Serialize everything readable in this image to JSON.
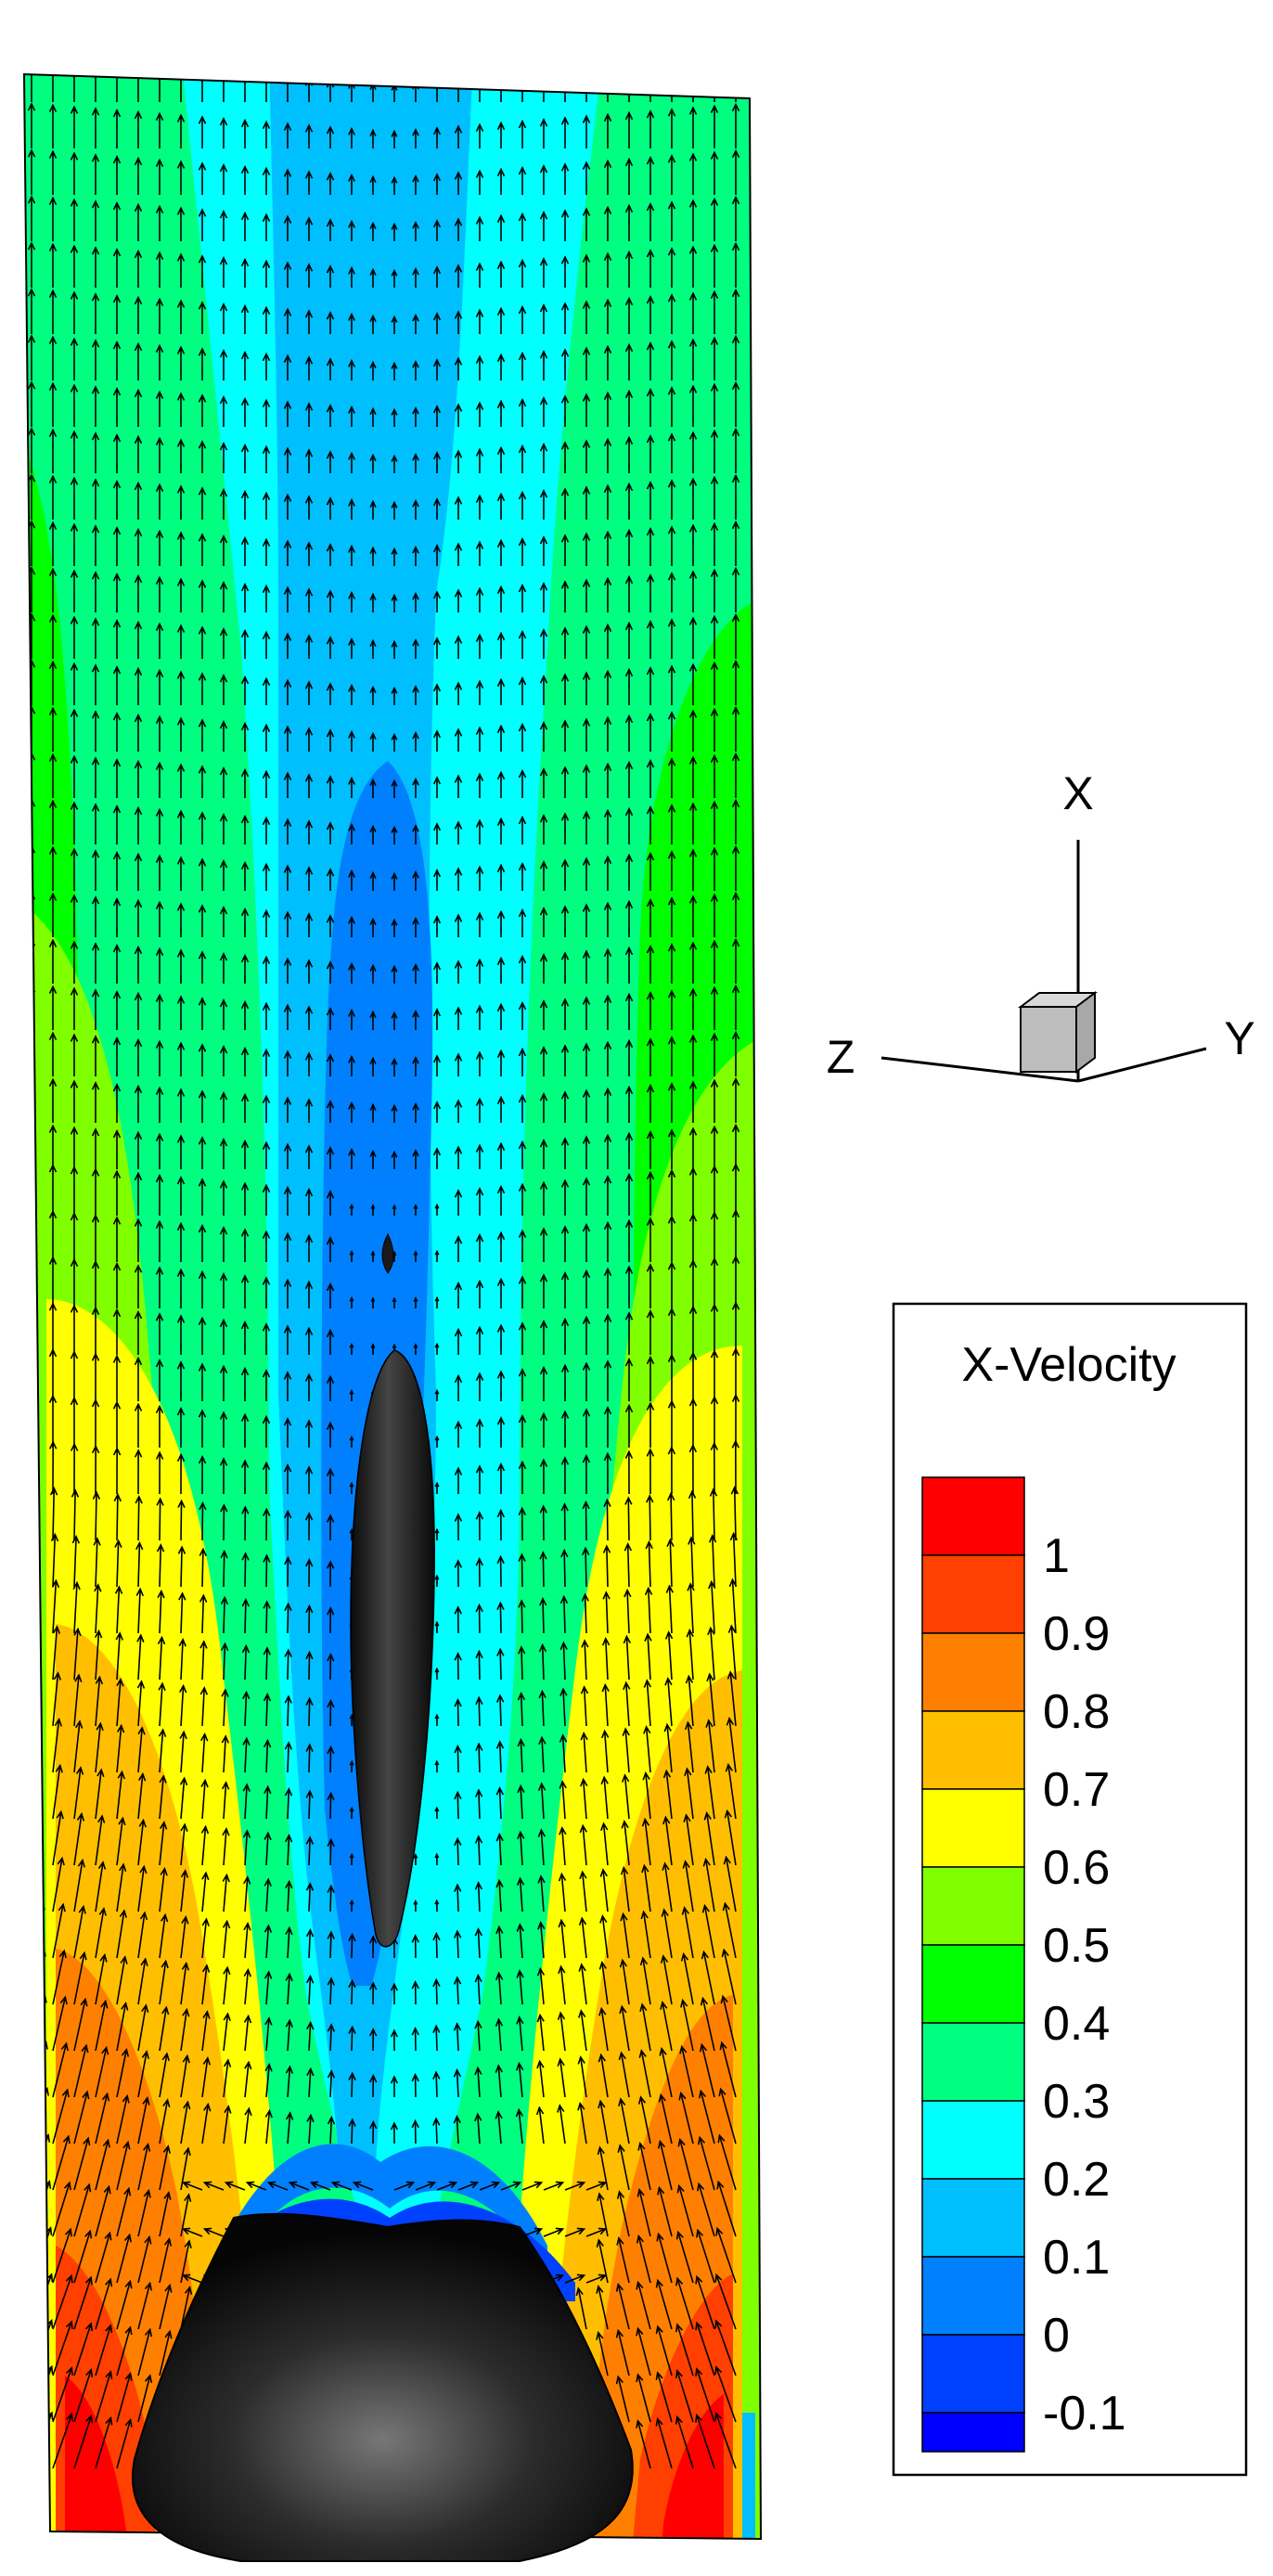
{
  "triad": {
    "x_label": "X",
    "y_label": "Y",
    "z_label": "Z"
  },
  "legend": {
    "title": "X-Velocity",
    "levels": [
      {
        "value": "1",
        "color": "#ff0000"
      },
      {
        "value": "0.9",
        "color": "#ff4000"
      },
      {
        "value": "0.8",
        "color": "#ff8000"
      },
      {
        "value": "0.7",
        "color": "#ffbf00"
      },
      {
        "value": "0.6",
        "color": "#ffff00"
      },
      {
        "value": "0.5",
        "color": "#80ff00"
      },
      {
        "value": "0.4",
        "color": "#00ff00"
      },
      {
        "value": "0.3",
        "color": "#00ff80"
      },
      {
        "value": "0.2",
        "color": "#00ffff"
      },
      {
        "value": "0.1",
        "color": "#00bfff"
      },
      {
        "value": "0",
        "color": "#0080ff"
      },
      {
        "value": "-0.1",
        "color": "#0040ff"
      }
    ],
    "bottom_color": "#0000ff"
  }
}
